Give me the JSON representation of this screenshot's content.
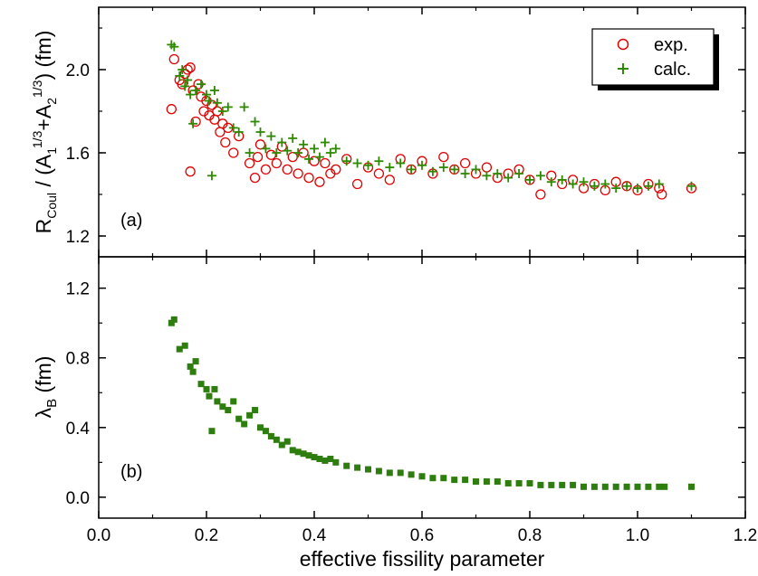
{
  "chart_data": [
    {
      "type": "scatter",
      "panel_label": "(a)",
      "ylabel": {
        "main": "R",
        "sub1": "Coul",
        "mid": " / (A",
        "sub2": "1",
        "sup2": "1/3",
        "plus": "+A",
        "sub3": "2",
        "sup3": "1/3",
        "end": ") (fm)"
      },
      "xlim": [
        0.0,
        1.2
      ],
      "ylim": [
        1.1,
        2.3
      ],
      "yticks": [
        1.2,
        1.6,
        2.0
      ],
      "ytick_labels": [
        "1.2",
        "1.6",
        "2.0"
      ],
      "legend": {
        "position": "top-right"
      },
      "series": [
        {
          "name": "exp.",
          "marker": "open-circle",
          "color": "#e00000",
          "points": [
            [
              0.135,
              1.81
            ],
            [
              0.14,
              2.05
            ],
            [
              0.15,
              1.95
            ],
            [
              0.155,
              1.93
            ],
            [
              0.16,
              1.98
            ],
            [
              0.165,
              2.0
            ],
            [
              0.17,
              2.01
            ],
            [
              0.17,
              1.51
            ],
            [
              0.175,
              1.9
            ],
            [
              0.18,
              1.75
            ],
            [
              0.185,
              1.93
            ],
            [
              0.19,
              1.87
            ],
            [
              0.195,
              1.8
            ],
            [
              0.2,
              1.85
            ],
            [
              0.205,
              1.78
            ],
            [
              0.21,
              1.83
            ],
            [
              0.215,
              1.76
            ],
            [
              0.22,
              1.8
            ],
            [
              0.225,
              1.7
            ],
            [
              0.23,
              1.74
            ],
            [
              0.235,
              1.65
            ],
            [
              0.24,
              1.72
            ],
            [
              0.25,
              1.6
            ],
            [
              0.26,
              1.68
            ],
            [
              0.28,
              1.55
            ],
            [
              0.29,
              1.48
            ],
            [
              0.295,
              1.58
            ],
            [
              0.3,
              1.64
            ],
            [
              0.31,
              1.52
            ],
            [
              0.32,
              1.59
            ],
            [
              0.33,
              1.55
            ],
            [
              0.34,
              1.63
            ],
            [
              0.35,
              1.52
            ],
            [
              0.36,
              1.58
            ],
            [
              0.37,
              1.5
            ],
            [
              0.38,
              1.6
            ],
            [
              0.39,
              1.48
            ],
            [
              0.4,
              1.56
            ],
            [
              0.41,
              1.46
            ],
            [
              0.42,
              1.55
            ],
            [
              0.43,
              1.5
            ],
            [
              0.44,
              1.52
            ],
            [
              0.46,
              1.57
            ],
            [
              0.48,
              1.45
            ],
            [
              0.5,
              1.53
            ],
            [
              0.52,
              1.5
            ],
            [
              0.54,
              1.47
            ],
            [
              0.56,
              1.57
            ],
            [
              0.58,
              1.52
            ],
            [
              0.6,
              1.56
            ],
            [
              0.62,
              1.5
            ],
            [
              0.64,
              1.58
            ],
            [
              0.66,
              1.52
            ],
            [
              0.68,
              1.55
            ],
            [
              0.7,
              1.5
            ],
            [
              0.72,
              1.53
            ],
            [
              0.74,
              1.48
            ],
            [
              0.76,
              1.5
            ],
            [
              0.78,
              1.52
            ],
            [
              0.8,
              1.47
            ],
            [
              0.82,
              1.4
            ],
            [
              0.84,
              1.49
            ],
            [
              0.86,
              1.45
            ],
            [
              0.88,
              1.47
            ],
            [
              0.9,
              1.43
            ],
            [
              0.92,
              1.45
            ],
            [
              0.94,
              1.42
            ],
            [
              0.96,
              1.46
            ],
            [
              0.98,
              1.44
            ],
            [
              1.0,
              1.42
            ],
            [
              1.02,
              1.45
            ],
            [
              1.04,
              1.43
            ],
            [
              1.045,
              1.4
            ],
            [
              1.1,
              1.43
            ]
          ]
        },
        {
          "name": "calc.",
          "marker": "plus",
          "color": "#2d8a00",
          "points": [
            [
              0.135,
              2.12
            ],
            [
              0.14,
              2.11
            ],
            [
              0.15,
              1.97
            ],
            [
              0.155,
              2.0
            ],
            [
              0.16,
              1.92
            ],
            [
              0.165,
              1.95
            ],
            [
              0.17,
              1.88
            ],
            [
              0.175,
              1.74
            ],
            [
              0.18,
              1.9
            ],
            [
              0.19,
              1.93
            ],
            [
              0.2,
              1.88
            ],
            [
              0.205,
              1.85
            ],
            [
              0.21,
              1.49
            ],
            [
              0.215,
              1.9
            ],
            [
              0.22,
              1.84
            ],
            [
              0.23,
              1.8
            ],
            [
              0.24,
              1.82
            ],
            [
              0.25,
              1.72
            ],
            [
              0.26,
              1.7
            ],
            [
              0.27,
              1.82
            ],
            [
              0.28,
              1.6
            ],
            [
              0.29,
              1.75
            ],
            [
              0.3,
              1.7
            ],
            [
              0.31,
              1.62
            ],
            [
              0.32,
              1.68
            ],
            [
              0.33,
              1.6
            ],
            [
              0.34,
              1.65
            ],
            [
              0.35,
              1.61
            ],
            [
              0.36,
              1.67
            ],
            [
              0.37,
              1.6
            ],
            [
              0.38,
              1.64
            ],
            [
              0.39,
              1.57
            ],
            [
              0.4,
              1.62
            ],
            [
              0.41,
              1.58
            ],
            [
              0.42,
              1.65
            ],
            [
              0.43,
              1.6
            ],
            [
              0.44,
              1.62
            ],
            [
              0.46,
              1.56
            ],
            [
              0.48,
              1.55
            ],
            [
              0.5,
              1.54
            ],
            [
              0.52,
              1.56
            ],
            [
              0.54,
              1.53
            ],
            [
              0.56,
              1.55
            ],
            [
              0.58,
              1.52
            ],
            [
              0.6,
              1.54
            ],
            [
              0.62,
              1.51
            ],
            [
              0.64,
              1.53
            ],
            [
              0.66,
              1.52
            ],
            [
              0.68,
              1.5
            ],
            [
              0.7,
              1.52
            ],
            [
              0.72,
              1.49
            ],
            [
              0.74,
              1.5
            ],
            [
              0.76,
              1.48
            ],
            [
              0.78,
              1.5
            ],
            [
              0.8,
              1.47
            ],
            [
              0.82,
              1.49
            ],
            [
              0.84,
              1.46
            ],
            [
              0.86,
              1.47
            ],
            [
              0.88,
              1.45
            ],
            [
              0.9,
              1.46
            ],
            [
              0.92,
              1.44
            ],
            [
              0.94,
              1.45
            ],
            [
              0.96,
              1.43
            ],
            [
              0.98,
              1.44
            ],
            [
              1.0,
              1.43
            ],
            [
              1.02,
              1.44
            ],
            [
              1.04,
              1.45
            ],
            [
              1.1,
              1.44
            ]
          ]
        }
      ]
    },
    {
      "type": "scatter",
      "panel_label": "(b)",
      "ylabel": {
        "main": "λ",
        "sub1": "B",
        "end": " (fm)"
      },
      "xlabel": "effective fissility parameter",
      "xlim": [
        0.0,
        1.2
      ],
      "ylim": [
        -0.12,
        1.38
      ],
      "xticks": [
        0.0,
        0.2,
        0.4,
        0.6,
        0.8,
        1.0,
        1.2
      ],
      "xtick_labels": [
        "0.0",
        "0.2",
        "0.4",
        "0.6",
        "0.8",
        "1.0",
        "1.2"
      ],
      "yticks": [
        0.0,
        0.4,
        0.8,
        1.2
      ],
      "ytick_labels": [
        "0.0",
        "0.4",
        "0.8",
        "1.2"
      ],
      "series": [
        {
          "marker": "filled-square",
          "color": "#2d7d0f",
          "points": [
            [
              0.135,
              1.0
            ],
            [
              0.14,
              1.02
            ],
            [
              0.15,
              0.85
            ],
            [
              0.16,
              0.87
            ],
            [
              0.17,
              0.75
            ],
            [
              0.175,
              0.72
            ],
            [
              0.18,
              0.78
            ],
            [
              0.19,
              0.65
            ],
            [
              0.2,
              0.62
            ],
            [
              0.205,
              0.58
            ],
            [
              0.21,
              0.38
            ],
            [
              0.215,
              0.62
            ],
            [
              0.22,
              0.55
            ],
            [
              0.23,
              0.52
            ],
            [
              0.24,
              0.5
            ],
            [
              0.25,
              0.55
            ],
            [
              0.26,
              0.45
            ],
            [
              0.27,
              0.42
            ],
            [
              0.28,
              0.47
            ],
            [
              0.29,
              0.5
            ],
            [
              0.3,
              0.4
            ],
            [
              0.31,
              0.38
            ],
            [
              0.32,
              0.35
            ],
            [
              0.33,
              0.33
            ],
            [
              0.34,
              0.3
            ],
            [
              0.35,
              0.32
            ],
            [
              0.36,
              0.27
            ],
            [
              0.37,
              0.26
            ],
            [
              0.38,
              0.25
            ],
            [
              0.39,
              0.24
            ],
            [
              0.4,
              0.23
            ],
            [
              0.41,
              0.22
            ],
            [
              0.42,
              0.21
            ],
            [
              0.43,
              0.22
            ],
            [
              0.44,
              0.2
            ],
            [
              0.46,
              0.18
            ],
            [
              0.48,
              0.17
            ],
            [
              0.5,
              0.16
            ],
            [
              0.52,
              0.15
            ],
            [
              0.54,
              0.14
            ],
            [
              0.56,
              0.14
            ],
            [
              0.58,
              0.13
            ],
            [
              0.6,
              0.12
            ],
            [
              0.62,
              0.11
            ],
            [
              0.64,
              0.11
            ],
            [
              0.66,
              0.1
            ],
            [
              0.68,
              0.1
            ],
            [
              0.7,
              0.09
            ],
            [
              0.72,
              0.09
            ],
            [
              0.74,
              0.09
            ],
            [
              0.76,
              0.08
            ],
            [
              0.78,
              0.08
            ],
            [
              0.8,
              0.08
            ],
            [
              0.82,
              0.07
            ],
            [
              0.84,
              0.07
            ],
            [
              0.86,
              0.07
            ],
            [
              0.88,
              0.07
            ],
            [
              0.9,
              0.06
            ],
            [
              0.92,
              0.06
            ],
            [
              0.94,
              0.06
            ],
            [
              0.96,
              0.06
            ],
            [
              0.98,
              0.06
            ],
            [
              1.0,
              0.06
            ],
            [
              1.02,
              0.06
            ],
            [
              1.04,
              0.06
            ],
            [
              1.05,
              0.06
            ],
            [
              1.1,
              0.06
            ]
          ]
        }
      ]
    }
  ]
}
